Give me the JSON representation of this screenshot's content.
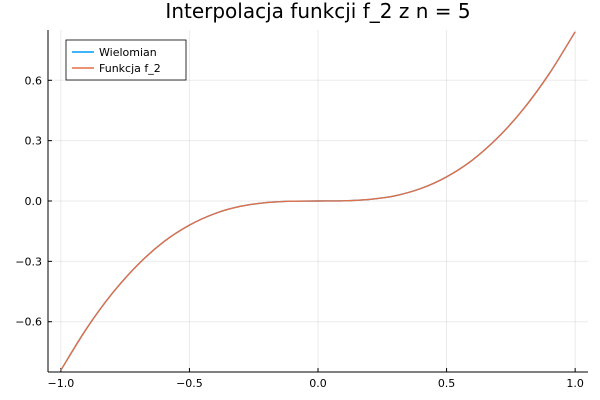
{
  "chart_data": {
    "type": "line",
    "title": "Interpolacja funkcji f_2 z n = 5",
    "xlabel": "",
    "ylabel": "",
    "xlim": [
      -1.05,
      1.05
    ],
    "ylim": [
      -0.85,
      0.85
    ],
    "x_ticks": [
      -1.0,
      -0.5,
      0.0,
      0.5,
      1.0
    ],
    "x_tick_labels": [
      "−1.0",
      "−0.5",
      "0.0",
      "0.5",
      "1.0"
    ],
    "y_ticks": [
      -0.6,
      -0.3,
      0.0,
      0.3,
      0.6
    ],
    "y_tick_labels": [
      "−0.6",
      "−0.3",
      "0.0",
      "0.3",
      "0.6"
    ],
    "grid": true,
    "legend_position": "top-left",
    "x": [
      -1.0,
      -0.9,
      -0.8,
      -0.7,
      -0.6,
      -0.5,
      -0.4,
      -0.3,
      -0.2,
      -0.1,
      0.0,
      0.1,
      0.2,
      0.3,
      0.4,
      0.5,
      0.6,
      0.7,
      0.8,
      0.9,
      1.0
    ],
    "series": [
      {
        "name": "Wielomian",
        "color": "#009AFA",
        "values": [
          -0.841,
          -0.634,
          -0.459,
          -0.316,
          -0.203,
          -0.12,
          -0.062,
          -0.026,
          -0.008,
          -0.001,
          0.0,
          0.001,
          0.008,
          0.026,
          0.062,
          0.12,
          0.203,
          0.316,
          0.459,
          0.634,
          0.841
        ]
      },
      {
        "name": "Funkcja f_2",
        "color": "#E26F46",
        "values": [
          -0.841,
          -0.634,
          -0.459,
          -0.316,
          -0.203,
          -0.12,
          -0.062,
          -0.026,
          -0.008,
          -0.001,
          0.0,
          0.001,
          0.008,
          0.026,
          0.062,
          0.12,
          0.203,
          0.316,
          0.459,
          0.634,
          0.841
        ]
      }
    ]
  }
}
